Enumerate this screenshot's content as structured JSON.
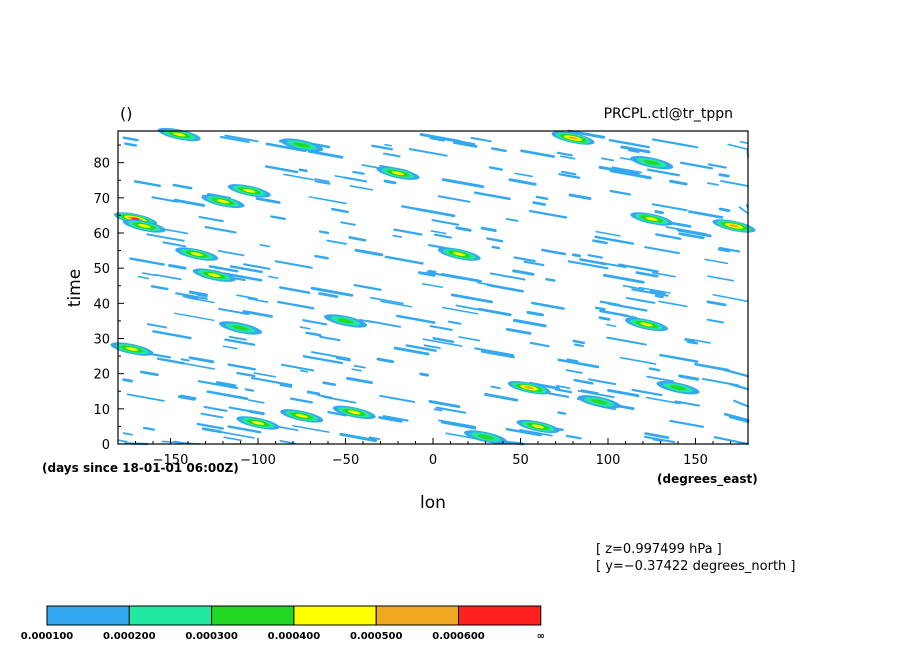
{
  "chart_data": {
    "type": "heatmap",
    "title": "()",
    "dataset_label": "PRCPL.ctl@tr_tppn",
    "xlabel": "lon",
    "ylabel": "time",
    "x_unit": "(degrees_east)",
    "y_unit": "(days since 18-01-01 06:00Z)",
    "xlim": [
      -180,
      180
    ],
    "ylim": [
      0,
      89
    ],
    "x_ticks": [
      -150,
      -100,
      -50,
      0,
      50,
      100,
      150
    ],
    "x_tick_labels": [
      "−150",
      "−100",
      "−50",
      "0",
      "50",
      "100",
      "150"
    ],
    "y_ticks": [
      0,
      10,
      20,
      30,
      40,
      50,
      60,
      70,
      80
    ],
    "y_tick_labels": [
      "0",
      "10",
      "20",
      "30",
      "40",
      "50",
      "60",
      "70",
      "80"
    ],
    "grid": false,
    "info_lines": [
      "[ z=0.997499 hPa ]",
      "[ y=−0.37422 degrees_north ]"
    ],
    "colorbar": {
      "levels": [
        "0.000100",
        "0.000200",
        "0.000300",
        "0.000400",
        "0.000500",
        "0.000600",
        "∞"
      ],
      "colors": [
        "#33a8f0",
        "#22e8a0",
        "#22d822",
        "#ffff00",
        "#f0a820",
        "#ff2020"
      ]
    },
    "features": [
      {
        "lon": -170,
        "time": 64,
        "level": 5
      },
      {
        "lon": -165,
        "time": 62,
        "level": 3
      },
      {
        "lon": -172,
        "time": 27,
        "level": 3
      },
      {
        "lon": -135,
        "time": 54,
        "level": 3
      },
      {
        "lon": -125,
        "time": 48,
        "level": 3
      },
      {
        "lon": -120,
        "time": 69,
        "level": 3
      },
      {
        "lon": -105,
        "time": 72,
        "level": 3
      },
      {
        "lon": -110,
        "time": 33,
        "level": 2
      },
      {
        "lon": -100,
        "time": 6,
        "level": 3
      },
      {
        "lon": -75,
        "time": 8,
        "level": 3
      },
      {
        "lon": -45,
        "time": 9,
        "level": 3
      },
      {
        "lon": -50,
        "time": 35,
        "level": 2
      },
      {
        "lon": -145,
        "time": 88,
        "level": 3
      },
      {
        "lon": -75,
        "time": 85,
        "level": 2
      },
      {
        "lon": -20,
        "time": 77,
        "level": 3
      },
      {
        "lon": 15,
        "time": 54,
        "level": 3
      },
      {
        "lon": 55,
        "time": 16,
        "level": 4
      },
      {
        "lon": 60,
        "time": 5,
        "level": 3
      },
      {
        "lon": 80,
        "time": 87,
        "level": 4
      },
      {
        "lon": 125,
        "time": 64,
        "level": 3
      },
      {
        "lon": 125,
        "time": 80,
        "level": 2
      },
      {
        "lon": 172,
        "time": 62,
        "level": 4
      },
      {
        "lon": 122,
        "time": 34,
        "level": 3
      },
      {
        "lon": 140,
        "time": 16,
        "level": 2
      },
      {
        "lon": 95,
        "time": 12,
        "level": 2
      },
      {
        "lon": 30,
        "time": 2,
        "level": 2
      }
    ]
  }
}
